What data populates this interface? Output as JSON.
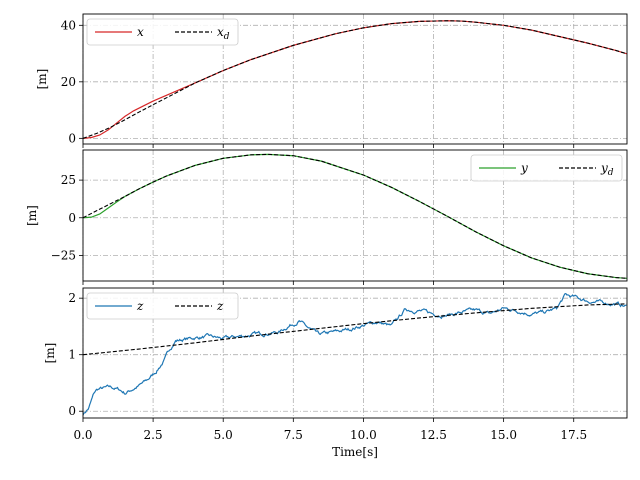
{
  "chart_data": [
    {
      "type": "line",
      "ylabel": "[m]",
      "xlim": [
        0,
        19.4
      ],
      "ylim": [
        -2,
        44
      ],
      "yticks": [
        0,
        20,
        40
      ],
      "xticks": [
        0,
        2.5,
        5,
        7.5,
        10,
        12.5,
        15,
        17.5
      ],
      "grid": true,
      "legend_position": "top-left",
      "series": [
        {
          "name": "x",
          "color": "#d62728",
          "dash": "solid",
          "x": [
            0,
            0.3,
            0.6,
            0.9,
            1.2,
            1.5,
            1.8,
            2.5,
            4,
            5,
            6,
            7.5,
            9,
            10,
            11,
            12,
            12.5,
            13,
            13.5,
            14,
            15,
            16,
            17,
            18,
            19,
            19.4
          ],
          "y": [
            0,
            0.3,
            1.2,
            3.0,
            5.4,
            7.8,
            9.7,
            13.2,
            19.6,
            24,
            27.9,
            32.9,
            37.0,
            39.1,
            40.6,
            41.4,
            41.5,
            41.6,
            41.5,
            41.1,
            40.0,
            38.3,
            36.0,
            33.7,
            31.1,
            29.9
          ]
        },
        {
          "name": "x_d",
          "color": "#000000",
          "dash": "dashed",
          "x": [
            0,
            0.5,
            1,
            1.5,
            2,
            2.5,
            4,
            5,
            6,
            7.5,
            9,
            10,
            11,
            12,
            12.5,
            13,
            13.5,
            14,
            15,
            16,
            17,
            18,
            19,
            19.4
          ],
          "y": [
            0,
            1.8,
            4.0,
            6.6,
            9.3,
            11.9,
            19.6,
            24,
            27.9,
            32.9,
            37.0,
            39.1,
            40.6,
            41.4,
            41.5,
            41.6,
            41.5,
            41.1,
            40.0,
            38.3,
            36.0,
            33.7,
            31.1,
            29.9
          ]
        }
      ]
    },
    {
      "type": "line",
      "ylabel": "[m]",
      "xlim": [
        0,
        19.4
      ],
      "ylim": [
        -42,
        45
      ],
      "yticks": [
        -25,
        0,
        25
      ],
      "xticks": [
        0,
        2.5,
        5,
        7.5,
        10,
        12.5,
        15,
        17.5
      ],
      "grid": true,
      "legend_position": "top-right",
      "series": [
        {
          "name": "y",
          "color": "#2ca02c",
          "dash": "solid",
          "x": [
            0,
            0.3,
            0.6,
            0.9,
            1.2,
            1.5,
            2,
            2.5,
            3,
            4,
            5,
            6,
            6.6,
            7.5,
            8.5,
            10,
            11,
            12,
            13,
            14,
            15,
            16,
            17,
            18,
            19,
            19.4
          ],
          "y": [
            0,
            0.4,
            2.5,
            6.5,
            10.5,
            14.2,
            19.2,
            23.7,
            27.9,
            34.8,
            39.5,
            41.8,
            42.1,
            41.2,
            37.6,
            28.4,
            20.2,
            10.8,
            0.9,
            -9.3,
            -18.6,
            -26.7,
            -32.8,
            -37.2,
            -39.7,
            -40.2
          ]
        },
        {
          "name": "y_d",
          "color": "#000000",
          "dash": "dashed",
          "x": [
            0,
            0.5,
            1,
            1.5,
            2,
            2.5,
            3,
            4,
            5,
            6,
            6.6,
            7.5,
            8.5,
            10,
            11,
            12,
            13,
            14,
            15,
            16,
            17,
            18,
            19,
            19.4
          ],
          "y": [
            0,
            4.8,
            9.5,
            14.2,
            19.2,
            23.7,
            27.9,
            34.8,
            39.5,
            41.8,
            42.1,
            41.2,
            37.6,
            28.4,
            20.2,
            10.8,
            0.9,
            -9.3,
            -18.6,
            -26.7,
            -32.8,
            -37.2,
            -39.7,
            -40.2
          ]
        }
      ]
    },
    {
      "type": "line",
      "xlabel": "Time[s]",
      "ylabel": "[m]",
      "xlim": [
        0,
        19.4
      ],
      "ylim": [
        -0.12,
        2.18
      ],
      "yticks": [
        0,
        1,
        2
      ],
      "xticks": [
        0,
        2.5,
        5,
        7.5,
        10,
        12.5,
        15,
        17.5
      ],
      "xticklabels": [
        "0.0",
        "2.5",
        "5.0",
        "7.5",
        "10.0",
        "12.5",
        "15.0",
        "17.5"
      ],
      "grid": true,
      "legend_position": "top-left",
      "series": [
        {
          "name": "z",
          "color": "#1f77b4",
          "dash": "solid",
          "noisy": true,
          "x": [
            0,
            0.2,
            0.4,
            0.5,
            0.7,
            1.0,
            1.3,
            1.5,
            1.8,
            2.0,
            2.3,
            2.6,
            2.9,
            3.1,
            3.3,
            3.6,
            4.0,
            4.5,
            5.0,
            5.5,
            6.0,
            6.5,
            7.0,
            7.3,
            7.7,
            8.0,
            8.4,
            9.0,
            9.5,
            10.0,
            10.5,
            11.0,
            11.5,
            12.0,
            12.5,
            13.0,
            13.5,
            14.0,
            14.5,
            15.0,
            15.5,
            16.0,
            16.5,
            16.9,
            17.2,
            17.5,
            18.0,
            18.5,
            19.0,
            19.4
          ],
          "y": [
            -0.05,
            0.05,
            0.32,
            0.38,
            0.4,
            0.42,
            0.38,
            0.32,
            0.4,
            0.45,
            0.55,
            0.7,
            0.9,
            1.1,
            1.25,
            1.27,
            1.3,
            1.32,
            1.28,
            1.32,
            1.35,
            1.38,
            1.4,
            1.5,
            1.6,
            1.48,
            1.35,
            1.4,
            1.45,
            1.52,
            1.58,
            1.5,
            1.8,
            1.78,
            1.72,
            1.7,
            1.75,
            1.78,
            1.72,
            1.82,
            1.78,
            1.72,
            1.75,
            1.82,
            2.05,
            2.02,
            1.95,
            1.92,
            1.9,
            1.85
          ]
        },
        {
          "name": "z",
          "color": "#000000",
          "dash": "dashed",
          "x": [
            0,
            2,
            4,
            6,
            8,
            10,
            12,
            14,
            16,
            17,
            18,
            19.4
          ],
          "y": [
            1.0,
            1.1,
            1.21,
            1.33,
            1.44,
            1.55,
            1.65,
            1.74,
            1.82,
            1.85,
            1.88,
            1.9
          ]
        }
      ]
    }
  ]
}
